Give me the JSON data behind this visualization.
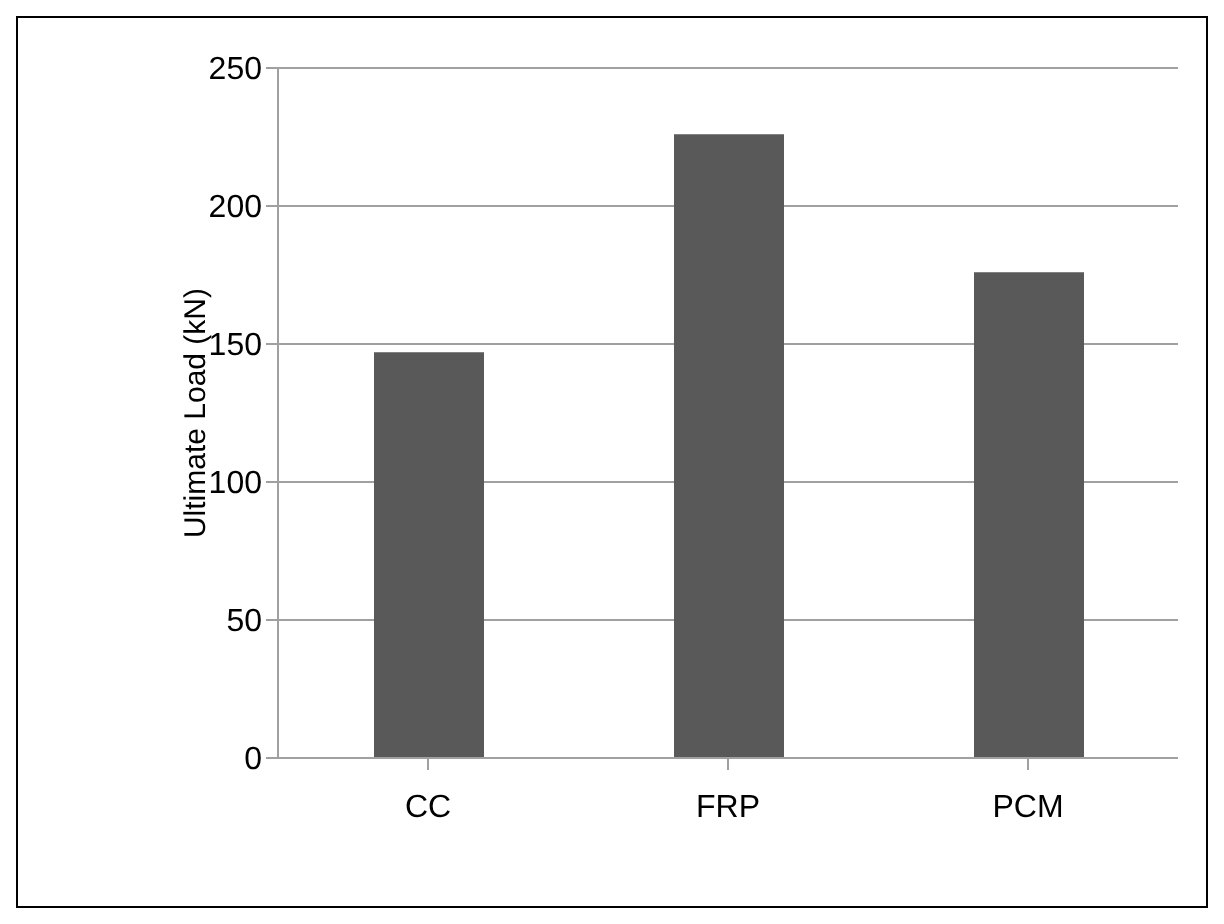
{
  "chart_data": {
    "type": "bar",
    "ylabel": "Ultimate Load (kN)",
    "categories": [
      "CC",
      "FRP",
      "PCM"
    ],
    "values": [
      147,
      226,
      176
    ],
    "color": "#595959",
    "ylim": [
      0,
      250
    ],
    "yticks": [
      0,
      50,
      100,
      150,
      200,
      250
    ],
    "grid": "y"
  }
}
